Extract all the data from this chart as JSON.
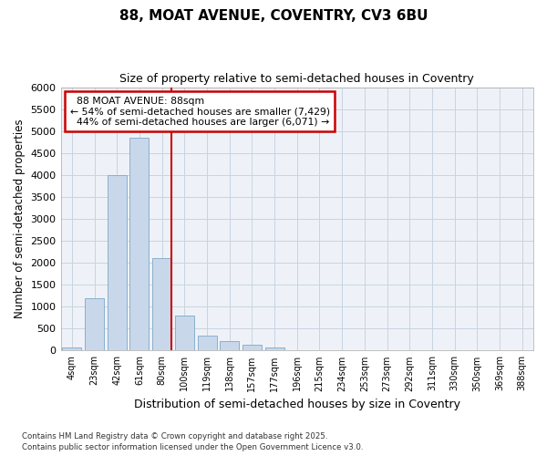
{
  "title": "88, MOAT AVENUE, COVENTRY, CV3 6BU",
  "subtitle": "Size of property relative to semi-detached houses in Coventry",
  "xlabel": "Distribution of semi-detached houses by size in Coventry",
  "ylabel": "Number of semi-detached properties",
  "categories": [
    "4sqm",
    "23sqm",
    "42sqm",
    "61sqm",
    "80sqm",
    "100sqm",
    "119sqm",
    "138sqm",
    "157sqm",
    "177sqm",
    "196sqm",
    "215sqm",
    "234sqm",
    "253sqm",
    "273sqm",
    "292sqm",
    "311sqm",
    "330sqm",
    "350sqm",
    "369sqm",
    "388sqm"
  ],
  "values": [
    80,
    1200,
    4000,
    4850,
    2100,
    800,
    350,
    220,
    130,
    70,
    0,
    0,
    0,
    0,
    0,
    0,
    0,
    0,
    0,
    0,
    0
  ],
  "bar_color": "#c8d8ea",
  "bar_edgecolor": "#8ab0cc",
  "marker_bin_index": 4,
  "marker_label": "88 MOAT AVENUE: 88sqm",
  "smaller_pct": "54%",
  "smaller_count": "7,429",
  "larger_pct": "44%",
  "larger_count": "6,071",
  "redline_color": "#cc0000",
  "annotation_box_edgecolor": "#cc0000",
  "grid_color": "#c8d4e0",
  "bg_color": "#eef2f8",
  "ylim": [
    0,
    6000
  ],
  "yticks": [
    0,
    500,
    1000,
    1500,
    2000,
    2500,
    3000,
    3500,
    4000,
    4500,
    5000,
    5500,
    6000
  ],
  "footer": "Contains HM Land Registry data © Crown copyright and database right 2025.\nContains public sector information licensed under the Open Government Licence v3.0."
}
